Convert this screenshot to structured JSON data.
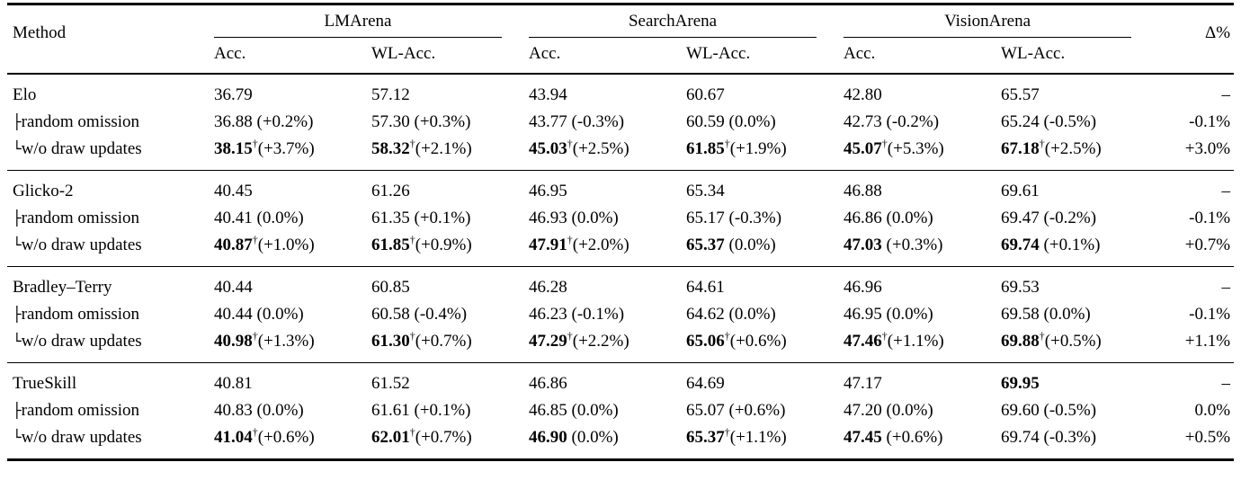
{
  "table": {
    "header": {
      "method_label": "Method",
      "groups": [
        {
          "label": "LMArena"
        },
        {
          "label": "SearchArena"
        },
        {
          "label": "VisionArena"
        }
      ],
      "subheaders": [
        "Acc.",
        "WL-Acc."
      ],
      "delta_label": "Δ%"
    },
    "dagger_symbol": "†",
    "groups": [
      {
        "rows": [
          {
            "method": "Elo",
            "tree": "",
            "cells": [
              {
                "v": "36.79",
                "b": false,
                "d": false,
                "s": ""
              },
              {
                "v": "57.12",
                "b": false,
                "d": false,
                "s": ""
              },
              {
                "v": "43.94",
                "b": false,
                "d": false,
                "s": ""
              },
              {
                "v": "60.67",
                "b": false,
                "d": false,
                "s": ""
              },
              {
                "v": "42.80",
                "b": false,
                "d": false,
                "s": ""
              },
              {
                "v": "65.57",
                "b": false,
                "d": false,
                "s": ""
              }
            ],
            "delta": "–"
          },
          {
            "method": "random omission",
            "tree": "├",
            "cells": [
              {
                "v": "36.88",
                "b": false,
                "d": false,
                "s": "(+0.2%)"
              },
              {
                "v": "57.30",
                "b": false,
                "d": false,
                "s": "(+0.3%)"
              },
              {
                "v": "43.77",
                "b": false,
                "d": false,
                "s": "(-0.3%)"
              },
              {
                "v": "60.59",
                "b": false,
                "d": false,
                "s": "(0.0%)"
              },
              {
                "v": "42.73",
                "b": false,
                "d": false,
                "s": "(-0.2%)"
              },
              {
                "v": "65.24",
                "b": false,
                "d": false,
                "s": "(-0.5%)"
              }
            ],
            "delta": "-0.1%"
          },
          {
            "method": "w/o draw updates",
            "tree": "└",
            "cells": [
              {
                "v": "38.15",
                "b": true,
                "d": true,
                "s": "(+3.7%)"
              },
              {
                "v": "58.32",
                "b": true,
                "d": true,
                "s": "(+2.1%)"
              },
              {
                "v": "45.03",
                "b": true,
                "d": true,
                "s": "(+2.5%)"
              },
              {
                "v": "61.85",
                "b": true,
                "d": true,
                "s": "(+1.9%)"
              },
              {
                "v": "45.07",
                "b": true,
                "d": true,
                "s": "(+5.3%)"
              },
              {
                "v": "67.18",
                "b": true,
                "d": true,
                "s": "(+2.5%)"
              }
            ],
            "delta": "+3.0%"
          }
        ]
      },
      {
        "rows": [
          {
            "method": "Glicko-2",
            "tree": "",
            "cells": [
              {
                "v": "40.45",
                "b": false,
                "d": false,
                "s": ""
              },
              {
                "v": "61.26",
                "b": false,
                "d": false,
                "s": ""
              },
              {
                "v": "46.95",
                "b": false,
                "d": false,
                "s": ""
              },
              {
                "v": "65.34",
                "b": false,
                "d": false,
                "s": ""
              },
              {
                "v": "46.88",
                "b": false,
                "d": false,
                "s": ""
              },
              {
                "v": "69.61",
                "b": false,
                "d": false,
                "s": ""
              }
            ],
            "delta": "–"
          },
          {
            "method": "random omission",
            "tree": "├",
            "cells": [
              {
                "v": "40.41",
                "b": false,
                "d": false,
                "s": "(0.0%)"
              },
              {
                "v": "61.35",
                "b": false,
                "d": false,
                "s": "(+0.1%)"
              },
              {
                "v": "46.93",
                "b": false,
                "d": false,
                "s": "(0.0%)"
              },
              {
                "v": "65.17",
                "b": false,
                "d": false,
                "s": "(-0.3%)"
              },
              {
                "v": "46.86",
                "b": false,
                "d": false,
                "s": "(0.0%)"
              },
              {
                "v": "69.47",
                "b": false,
                "d": false,
                "s": "(-0.2%)"
              }
            ],
            "delta": "-0.1%"
          },
          {
            "method": "w/o draw updates",
            "tree": "└",
            "cells": [
              {
                "v": "40.87",
                "b": true,
                "d": true,
                "s": "(+1.0%)"
              },
              {
                "v": "61.85",
                "b": true,
                "d": true,
                "s": "(+0.9%)"
              },
              {
                "v": "47.91",
                "b": true,
                "d": true,
                "s": "(+2.0%)"
              },
              {
                "v": "65.37",
                "b": true,
                "d": false,
                "s": "(0.0%)"
              },
              {
                "v": "47.03",
                "b": true,
                "d": false,
                "s": "(+0.3%)"
              },
              {
                "v": "69.74",
                "b": true,
                "d": false,
                "s": "(+0.1%)"
              }
            ],
            "delta": "+0.7%"
          }
        ]
      },
      {
        "rows": [
          {
            "method": "Bradley–Terry",
            "tree": "",
            "cells": [
              {
                "v": "40.44",
                "b": false,
                "d": false,
                "s": ""
              },
              {
                "v": "60.85",
                "b": false,
                "d": false,
                "s": ""
              },
              {
                "v": "46.28",
                "b": false,
                "d": false,
                "s": ""
              },
              {
                "v": "64.61",
                "b": false,
                "d": false,
                "s": ""
              },
              {
                "v": "46.96",
                "b": false,
                "d": false,
                "s": ""
              },
              {
                "v": "69.53",
                "b": false,
                "d": false,
                "s": ""
              }
            ],
            "delta": "–"
          },
          {
            "method": "random omission",
            "tree": "├",
            "cells": [
              {
                "v": "40.44",
                "b": false,
                "d": false,
                "s": "(0.0%)"
              },
              {
                "v": "60.58",
                "b": false,
                "d": false,
                "s": "(-0.4%)"
              },
              {
                "v": "46.23",
                "b": false,
                "d": false,
                "s": "(-0.1%)"
              },
              {
                "v": "64.62",
                "b": false,
                "d": false,
                "s": "(0.0%)"
              },
              {
                "v": "46.95",
                "b": false,
                "d": false,
                "s": "(0.0%)"
              },
              {
                "v": "69.58",
                "b": false,
                "d": false,
                "s": "(0.0%)"
              }
            ],
            "delta": "-0.1%"
          },
          {
            "method": "w/o draw updates",
            "tree": "└",
            "cells": [
              {
                "v": "40.98",
                "b": true,
                "d": true,
                "s": "(+1.3%)"
              },
              {
                "v": "61.30",
                "b": true,
                "d": true,
                "s": "(+0.7%)"
              },
              {
                "v": "47.29",
                "b": true,
                "d": true,
                "s": "(+2.2%)"
              },
              {
                "v": "65.06",
                "b": true,
                "d": true,
                "s": "(+0.6%)"
              },
              {
                "v": "47.46",
                "b": true,
                "d": true,
                "s": "(+1.1%)"
              },
              {
                "v": "69.88",
                "b": true,
                "d": true,
                "s": "(+0.5%)"
              }
            ],
            "delta": "+1.1%"
          }
        ]
      },
      {
        "rows": [
          {
            "method": "TrueSkill",
            "tree": "",
            "cells": [
              {
                "v": "40.81",
                "b": false,
                "d": false,
                "s": ""
              },
              {
                "v": "61.52",
                "b": false,
                "d": false,
                "s": ""
              },
              {
                "v": "46.86",
                "b": false,
                "d": false,
                "s": ""
              },
              {
                "v": "64.69",
                "b": false,
                "d": false,
                "s": ""
              },
              {
                "v": "47.17",
                "b": false,
                "d": false,
                "s": ""
              },
              {
                "v": "69.95",
                "b": true,
                "d": false,
                "s": ""
              }
            ],
            "delta": "–"
          },
          {
            "method": "random omission",
            "tree": "├",
            "cells": [
              {
                "v": "40.83",
                "b": false,
                "d": false,
                "s": "(0.0%)"
              },
              {
                "v": "61.61",
                "b": false,
                "d": false,
                "s": "(+0.1%)"
              },
              {
                "v": "46.85",
                "b": false,
                "d": false,
                "s": "(0.0%)"
              },
              {
                "v": "65.07",
                "b": false,
                "d": false,
                "s": "(+0.6%)"
              },
              {
                "v": "47.20",
                "b": false,
                "d": false,
                "s": "(0.0%)"
              },
              {
                "v": "69.60",
                "b": false,
                "d": false,
                "s": "(-0.5%)"
              }
            ],
            "delta": "0.0%"
          },
          {
            "method": "w/o draw updates",
            "tree": "└",
            "cells": [
              {
                "v": "41.04",
                "b": true,
                "d": true,
                "s": "(+0.6%)"
              },
              {
                "v": "62.01",
                "b": true,
                "d": true,
                "s": "(+0.7%)"
              },
              {
                "v": "46.90",
                "b": true,
                "d": false,
                "s": "(0.0%)"
              },
              {
                "v": "65.37",
                "b": true,
                "d": true,
                "s": "(+1.1%)"
              },
              {
                "v": "47.45",
                "b": true,
                "d": false,
                "s": "(+0.6%)"
              },
              {
                "v": "69.74",
                "b": false,
                "d": false,
                "s": "(-0.3%)"
              }
            ],
            "delta": "+0.5%"
          }
        ]
      }
    ]
  }
}
